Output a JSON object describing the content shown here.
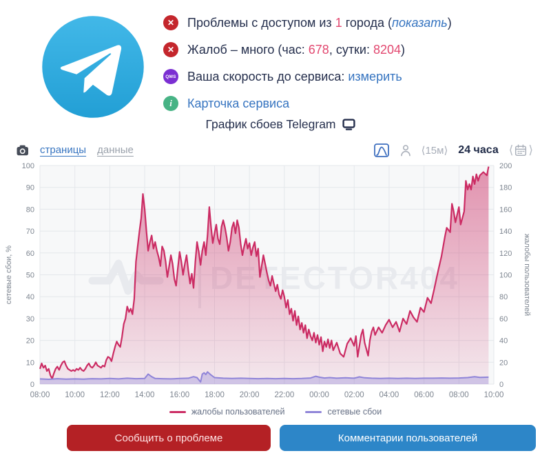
{
  "colors": {
    "accent_pink": "#e2476f",
    "link_blue": "#3674c0",
    "error_red": "#c4262c",
    "speed_purple": "#7b2fd2",
    "info_green": "#47b385",
    "button_red": "#b42125",
    "button_blue": "#2d86c8"
  },
  "status": {
    "rows": [
      {
        "icon": "error-icon",
        "icon_glyph": "✕",
        "parts": [
          {
            "t": "Проблемы с доступом из "
          },
          {
            "t": "1"
          },
          {
            "t": " города ("
          },
          {
            "t": "показать"
          },
          {
            "t": ")"
          }
        ]
      },
      {
        "icon": "error-icon",
        "icon_glyph": "✕",
        "parts": [
          {
            "t": "Жалоб – много (час: "
          },
          {
            "t": "678"
          },
          {
            "t": ", сутки: "
          },
          {
            "t": "8204"
          },
          {
            "t": ")"
          }
        ]
      },
      {
        "icon": "speed-test-icon",
        "icon_glyph": "QMS",
        "parts": [
          {
            "t": "Ваша скорость до сервиса: "
          },
          {
            "t": "измерить"
          }
        ]
      },
      {
        "icon": "info-icon",
        "icon_glyph": "i",
        "parts": [
          {
            "t": "Карточка сервиса"
          }
        ]
      }
    ],
    "title": "График сбоев Telegram"
  },
  "toolbar": {
    "tabs": [
      {
        "label": "страницы"
      },
      {
        "label": "данные"
      }
    ],
    "interval": "⟨15м⟩",
    "range": "24 часа",
    "angle_left": "⟨",
    "angle_right": "⟩"
  },
  "chart_data": {
    "type": "area",
    "title": "График сбоев Telegram",
    "watermark": "DETECTOR404",
    "x_range_hours": [
      0,
      26
    ],
    "x_tick_hours": [
      0,
      2,
      4,
      6,
      8,
      10,
      12,
      14,
      16,
      18,
      20,
      22,
      24,
      26
    ],
    "x_tick_labels": [
      "08:00",
      "10:00",
      "12:00",
      "14:00",
      "16:00",
      "18:00",
      "20:00",
      "22:00",
      "00:00",
      "02:00",
      "04:00",
      "06:00",
      "08:00",
      "10:00"
    ],
    "left_axis": {
      "label": "сетевые сбои, %",
      "min": 0,
      "max": 100,
      "step": 10
    },
    "right_axis": {
      "label": "жалобы пользователей",
      "min": 0,
      "max": 200,
      "step": 20
    },
    "grid": true,
    "legend_position": "bottom",
    "series": [
      {
        "name": "жалобы пользователей",
        "axis": "right",
        "color": "#cb2b63",
        "fill_opacity_top": 0.5,
        "fill_opacity_bottom": 0.08,
        "points": [
          [
            0,
            14
          ],
          [
            0.1,
            19
          ],
          [
            0.2,
            15
          ],
          [
            0.3,
            17
          ],
          [
            0.4,
            12
          ],
          [
            0.5,
            14
          ],
          [
            0.6,
            8
          ],
          [
            0.7,
            5
          ],
          [
            0.8,
            10
          ],
          [
            0.9,
            14
          ],
          [
            1,
            16
          ],
          [
            1.1,
            13
          ],
          [
            1.2,
            17
          ],
          [
            1.3,
            20
          ],
          [
            1.4,
            21
          ],
          [
            1.5,
            17
          ],
          [
            1.6,
            14
          ],
          [
            1.7,
            13
          ],
          [
            1.8,
            12
          ],
          [
            1.9,
            13
          ],
          [
            2,
            12
          ],
          [
            2.1,
            14
          ],
          [
            2.2,
            13
          ],
          [
            2.3,
            15
          ],
          [
            2.4,
            13
          ],
          [
            2.5,
            12
          ],
          [
            2.6,
            14
          ],
          [
            2.7,
            17
          ],
          [
            2.8,
            19
          ],
          [
            2.9,
            16
          ],
          [
            3,
            15
          ],
          [
            3.1,
            17
          ],
          [
            3.2,
            20
          ],
          [
            3.3,
            17
          ],
          [
            3.4,
            16
          ],
          [
            3.5,
            15
          ],
          [
            3.6,
            17
          ],
          [
            3.7,
            16
          ],
          [
            3.8,
            22
          ],
          [
            3.9,
            25
          ],
          [
            4,
            24
          ],
          [
            4.1,
            21
          ],
          [
            4.2,
            28
          ],
          [
            4.3,
            34
          ],
          [
            4.4,
            39
          ],
          [
            4.5,
            36
          ],
          [
            4.6,
            34
          ],
          [
            4.7,
            43
          ],
          [
            4.8,
            55
          ],
          [
            4.9,
            60
          ],
          [
            5,
            71
          ],
          [
            5.1,
            66
          ],
          [
            5.2,
            69
          ],
          [
            5.3,
            64
          ],
          [
            5.4,
            78
          ],
          [
            5.5,
            112
          ],
          [
            5.6,
            126
          ],
          [
            5.7,
            140
          ],
          [
            5.8,
            152
          ],
          [
            5.9,
            174
          ],
          [
            6,
            160
          ],
          [
            6.1,
            140
          ],
          [
            6.2,
            122
          ],
          [
            6.3,
            130
          ],
          [
            6.4,
            136
          ],
          [
            6.5,
            124
          ],
          [
            6.6,
            130
          ],
          [
            6.7,
            122
          ],
          [
            6.8,
            116
          ],
          [
            6.9,
            108
          ],
          [
            7,
            126
          ],
          [
            7.1,
            122
          ],
          [
            7.2,
            112
          ],
          [
            7.3,
            98
          ],
          [
            7.4,
            108
          ],
          [
            7.5,
            118
          ],
          [
            7.6,
            110
          ],
          [
            7.7,
            96
          ],
          [
            7.8,
            90
          ],
          [
            7.9,
            106
          ],
          [
            8,
            121
          ],
          [
            8.1,
            112
          ],
          [
            8.2,
            100
          ],
          [
            8.3,
            110
          ],
          [
            8.4,
            118
          ],
          [
            8.5,
            104
          ],
          [
            8.6,
            92
          ],
          [
            8.7,
            101
          ],
          [
            8.8,
            88
          ],
          [
            8.9,
            112
          ],
          [
            9,
            130
          ],
          [
            9.1,
            121
          ],
          [
            9.2,
            109
          ],
          [
            9.3,
            122
          ],
          [
            9.4,
            130
          ],
          [
            9.5,
            118
          ],
          [
            9.6,
            136
          ],
          [
            9.7,
            162
          ],
          [
            9.8,
            144
          ],
          [
            9.9,
            129
          ],
          [
            10,
            138
          ],
          [
            10.1,
            146
          ],
          [
            10.2,
            133
          ],
          [
            10.3,
            128
          ],
          [
            10.4,
            144
          ],
          [
            10.5,
            150
          ],
          [
            10.6,
            143
          ],
          [
            10.7,
            134
          ],
          [
            10.8,
            122
          ],
          [
            10.9,
            130
          ],
          [
            11,
            143
          ],
          [
            11.1,
            148
          ],
          [
            11.2,
            138
          ],
          [
            11.3,
            150
          ],
          [
            11.4,
            143
          ],
          [
            11.5,
            128
          ],
          [
            11.6,
            118
          ],
          [
            11.7,
            126
          ],
          [
            11.8,
            133
          ],
          [
            11.9,
            124
          ],
          [
            12,
            129
          ],
          [
            12.1,
            118
          ],
          [
            12.2,
            125
          ],
          [
            12.3,
            130
          ],
          [
            12.4,
            117
          ],
          [
            12.5,
            124
          ],
          [
            12.6,
            98
          ],
          [
            12.7,
            108
          ],
          [
            12.8,
            118
          ],
          [
            12.9,
            110
          ],
          [
            13,
            102
          ],
          [
            13.1,
            95
          ],
          [
            13.2,
            90
          ],
          [
            13.3,
            99
          ],
          [
            13.4,
            92
          ],
          [
            13.5,
            85
          ],
          [
            13.6,
            91
          ],
          [
            13.7,
            82
          ],
          [
            13.8,
            78
          ],
          [
            13.9,
            86
          ],
          [
            14,
            80
          ],
          [
            14.1,
            70
          ],
          [
            14.2,
            77
          ],
          [
            14.3,
            64
          ],
          [
            14.4,
            69
          ],
          [
            14.5,
            58
          ],
          [
            14.6,
            67
          ],
          [
            14.7,
            54
          ],
          [
            14.8,
            62
          ],
          [
            14.9,
            50
          ],
          [
            15,
            56
          ],
          [
            15.1,
            47
          ],
          [
            15.2,
            54
          ],
          [
            15.3,
            42
          ],
          [
            15.4,
            50
          ],
          [
            15.5,
            44
          ],
          [
            15.6,
            40
          ],
          [
            15.7,
            47
          ],
          [
            15.8,
            38
          ],
          [
            15.9,
            45
          ],
          [
            16,
            36
          ],
          [
            16.1,
            43
          ],
          [
            16.2,
            30
          ],
          [
            16.3,
            39
          ],
          [
            16.4,
            34
          ],
          [
            16.5,
            41
          ],
          [
            16.6,
            33
          ],
          [
            16.7,
            40
          ],
          [
            16.8,
            31
          ],
          [
            17,
            38
          ],
          [
            17.2,
            28
          ],
          [
            17.4,
            25
          ],
          [
            17.6,
            37
          ],
          [
            17.8,
            42
          ],
          [
            18,
            35
          ],
          [
            18.1,
            44
          ],
          [
            18.2,
            25
          ],
          [
            18.4,
            45
          ],
          [
            18.5,
            50
          ],
          [
            18.6,
            38
          ],
          [
            18.8,
            26
          ],
          [
            18.9,
            40
          ],
          [
            19,
            48
          ],
          [
            19.1,
            52
          ],
          [
            19.2,
            45
          ],
          [
            19.4,
            52
          ],
          [
            19.6,
            47
          ],
          [
            19.8,
            54
          ],
          [
            20,
            59
          ],
          [
            20.2,
            52
          ],
          [
            20.4,
            57
          ],
          [
            20.6,
            48
          ],
          [
            20.8,
            60
          ],
          [
            21,
            55
          ],
          [
            21.2,
            67
          ],
          [
            21.4,
            61
          ],
          [
            21.6,
            57
          ],
          [
            21.8,
            70
          ],
          [
            22,
            66
          ],
          [
            22.2,
            79
          ],
          [
            22.4,
            74
          ],
          [
            22.6,
            88
          ],
          [
            22.8,
            103
          ],
          [
            23,
            117
          ],
          [
            23.2,
            135
          ],
          [
            23.3,
            143
          ],
          [
            23.5,
            139
          ],
          [
            23.6,
            165
          ],
          [
            23.7,
            158
          ],
          [
            23.8,
            148
          ],
          [
            24,
            162
          ],
          [
            24.1,
            146
          ],
          [
            24.3,
            158
          ],
          [
            24.4,
            186
          ],
          [
            24.5,
            178
          ],
          [
            24.6,
            183
          ],
          [
            24.7,
            178
          ],
          [
            24.8,
            190
          ],
          [
            24.9,
            183
          ],
          [
            25,
            192
          ],
          [
            25.1,
            186
          ],
          [
            25.2,
            191
          ],
          [
            25.4,
            194
          ],
          [
            25.6,
            191
          ],
          [
            25.7,
            199
          ]
        ]
      },
      {
        "name": "сетевые сбои",
        "axis": "left",
        "color": "#8f84d8",
        "fill_opacity_top": 0.45,
        "fill_opacity_bottom": 0.35,
        "points": [
          [
            0,
            2.4
          ],
          [
            0.5,
            2.2
          ],
          [
            1,
            2.5
          ],
          [
            1.5,
            2.3
          ],
          [
            2,
            2.4
          ],
          [
            2.5,
            2.3
          ],
          [
            3,
            2.5
          ],
          [
            3.5,
            2.4
          ],
          [
            4,
            2.6
          ],
          [
            4.5,
            2.4
          ],
          [
            5,
            2.7
          ],
          [
            5.5,
            2.5
          ],
          [
            6,
            2.6
          ],
          [
            6.2,
            4.6
          ],
          [
            6.4,
            3.4
          ],
          [
            6.6,
            2.6
          ],
          [
            7,
            2.5
          ],
          [
            7.5,
            2.4
          ],
          [
            8,
            2.6
          ],
          [
            8.5,
            2.7
          ],
          [
            8.8,
            3.4
          ],
          [
            9,
            3
          ],
          [
            9.2,
            1
          ],
          [
            9.3,
            4.6
          ],
          [
            9.4,
            5.2
          ],
          [
            9.5,
            4.4
          ],
          [
            9.6,
            5.6
          ],
          [
            9.8,
            4.2
          ],
          [
            10,
            3
          ],
          [
            10.5,
            2.7
          ],
          [
            11,
            2.6
          ],
          [
            11.5,
            2.7
          ],
          [
            12,
            2.6
          ],
          [
            12.5,
            2.5
          ],
          [
            13,
            2.6
          ],
          [
            13.5,
            2.5
          ],
          [
            14,
            2.6
          ],
          [
            14.5,
            2.5
          ],
          [
            15,
            2.6
          ],
          [
            15.5,
            2.8
          ],
          [
            15.8,
            3.6
          ],
          [
            16,
            3.2
          ],
          [
            16.3,
            2.8
          ],
          [
            16.6,
            3
          ],
          [
            17,
            2.7
          ],
          [
            17.5,
            2.9
          ],
          [
            18,
            2.7
          ],
          [
            18.3,
            3.3
          ],
          [
            18.6,
            2.9
          ],
          [
            19,
            2.7
          ],
          [
            19.5,
            2.6
          ],
          [
            20,
            2.7
          ],
          [
            20.5,
            2.6
          ],
          [
            21,
            2.7
          ],
          [
            21.5,
            2.6
          ],
          [
            22,
            2.7
          ],
          [
            22.5,
            2.7
          ],
          [
            23,
            2.8
          ],
          [
            23.5,
            2.7
          ],
          [
            24,
            2.8
          ],
          [
            24.5,
            3
          ],
          [
            24.9,
            3.4
          ],
          [
            25.2,
            3.1
          ],
          [
            25.7,
            3.2
          ]
        ]
      }
    ]
  },
  "buttons": {
    "report": "Сообщить о проблеме",
    "comments": "Комментарии пользователей"
  }
}
